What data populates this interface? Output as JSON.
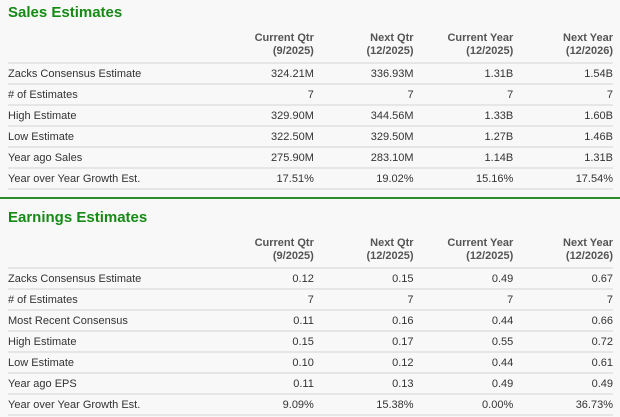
{
  "columns": [
    {
      "line1": "Current Qtr",
      "line2": "(9/2025)"
    },
    {
      "line1": "Next Qtr",
      "line2": "(12/2025)"
    },
    {
      "line1": "Current Year",
      "line2": "(12/2025)"
    },
    {
      "line1": "Next Year",
      "line2": "(12/2026)"
    }
  ],
  "sales": {
    "title": "Sales Estimates",
    "rows": [
      {
        "label": "Zacks Consensus Estimate",
        "values": [
          "324.21M",
          "336.93M",
          "1.31B",
          "1.54B"
        ]
      },
      {
        "label": "# of Estimates",
        "values": [
          "7",
          "7",
          "7",
          "7"
        ]
      },
      {
        "label": "High Estimate",
        "values": [
          "329.90M",
          "344.56M",
          "1.33B",
          "1.60B"
        ]
      },
      {
        "label": "Low Estimate",
        "values": [
          "322.50M",
          "329.50M",
          "1.27B",
          "1.46B"
        ]
      },
      {
        "label": "Year ago Sales",
        "values": [
          "275.90M",
          "283.10M",
          "1.14B",
          "1.31B"
        ]
      },
      {
        "label": "Year over Year Growth Est.",
        "values": [
          "17.51%",
          "19.02%",
          "15.16%",
          "17.54%"
        ]
      }
    ]
  },
  "earnings": {
    "title": "Earnings Estimates",
    "rows": [
      {
        "label": "Zacks Consensus Estimate",
        "values": [
          "0.12",
          "0.15",
          "0.49",
          "0.67"
        ]
      },
      {
        "label": "# of Estimates",
        "values": [
          "7",
          "7",
          "7",
          "7"
        ]
      },
      {
        "label": "Most Recent Consensus",
        "values": [
          "0.11",
          "0.16",
          "0.44",
          "0.66"
        ]
      },
      {
        "label": "High Estimate",
        "values": [
          "0.15",
          "0.17",
          "0.55",
          "0.72"
        ]
      },
      {
        "label": "Low Estimate",
        "values": [
          "0.10",
          "0.12",
          "0.44",
          "0.61"
        ]
      },
      {
        "label": "Year ago EPS",
        "values": [
          "0.11",
          "0.13",
          "0.49",
          "0.49"
        ]
      },
      {
        "label": "Year over Year Growth Est.",
        "values": [
          "9.09%",
          "15.38%",
          "0.00%",
          "36.73%"
        ]
      }
    ]
  },
  "colors": {
    "title": "#168a16",
    "divider": "#2e8b2e"
  }
}
